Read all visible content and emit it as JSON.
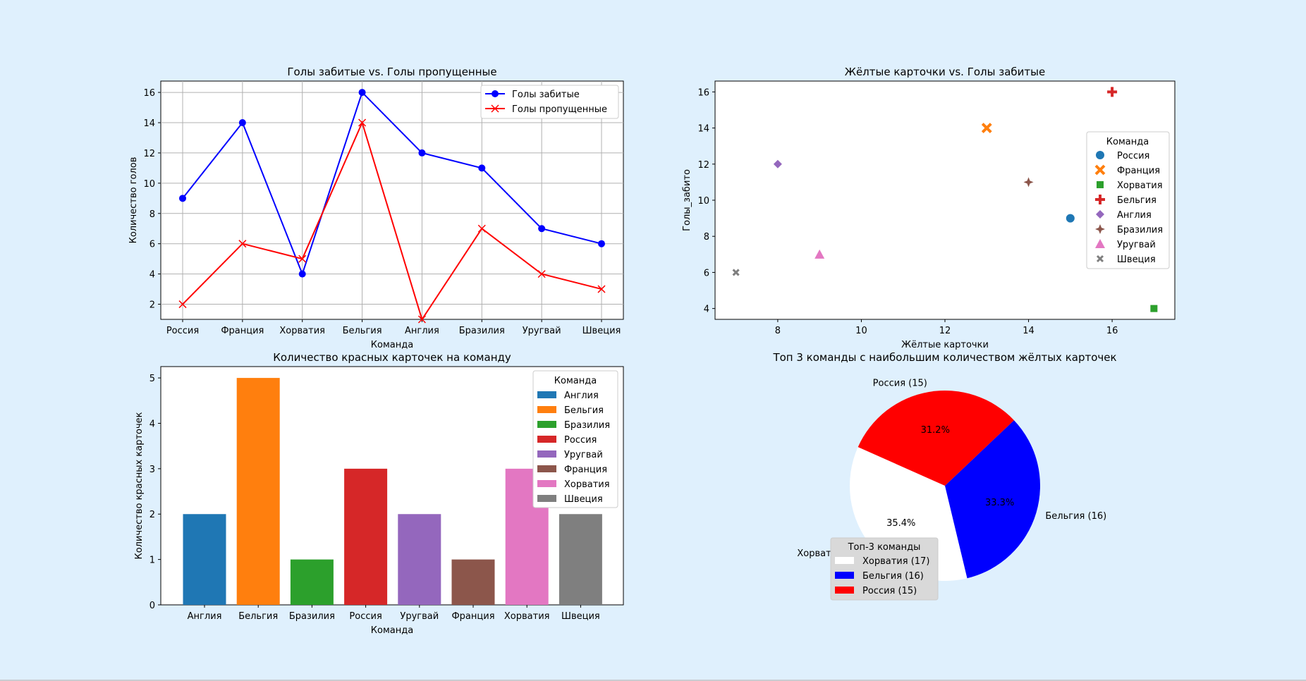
{
  "chart_data": [
    {
      "type": "line",
      "title": "Голы забитые vs. Голы пропущенные",
      "xlabel": "Команда",
      "ylabel": "Количество голов",
      "categories": [
        "Россия",
        "Франция",
        "Хорватия",
        "Бельгия",
        "Англия",
        "Бразилия",
        "Уругвай",
        "Швеция"
      ],
      "series": [
        {
          "name": "Голы забитые",
          "values": [
            9,
            14,
            4,
            16,
            12,
            11,
            7,
            6
          ],
          "color": "#0000ff",
          "marker": "o"
        },
        {
          "name": "Голы пропущенные",
          "values": [
            2,
            6,
            5,
            14,
            1,
            7,
            4,
            3
          ],
          "color": "#ff0000",
          "marker": "x"
        }
      ],
      "ylim": [
        1,
        16.75
      ],
      "yticks": [
        2,
        4,
        6,
        8,
        10,
        12,
        14,
        16
      ],
      "grid": true,
      "legend": "top-right"
    },
    {
      "type": "scatter",
      "title": "Жёлтые карточки vs. Голы забитые",
      "xlabel": "Жёлтые карточки",
      "ylabel": "Голы_забито",
      "legend_title": "Команда",
      "legend": "center-right",
      "xlim": [
        6.5,
        17.5
      ],
      "ylim": [
        3.4,
        16.6
      ],
      "xticks": [
        8,
        10,
        12,
        14,
        16
      ],
      "yticks": [
        4,
        6,
        8,
        10,
        12,
        14,
        16
      ],
      "grid": false,
      "points": [
        {
          "name": "Россия",
          "x": 15,
          "y": 9,
          "marker": "circle",
          "color": "#1f77b4"
        },
        {
          "name": "Франция",
          "x": 13,
          "y": 14,
          "marker": "x",
          "color": "#ff7f0e"
        },
        {
          "name": "Хорватия",
          "x": 17,
          "y": 4,
          "marker": "square",
          "color": "#2ca02c"
        },
        {
          "name": "Бельгия",
          "x": 16,
          "y": 16,
          "marker": "plus",
          "color": "#d62728"
        },
        {
          "name": "Англия",
          "x": 8,
          "y": 12,
          "marker": "diamond",
          "color": "#9467bd"
        },
        {
          "name": "Бразилия",
          "x": 14,
          "y": 11,
          "marker": "star4",
          "color": "#8c564b"
        },
        {
          "name": "Уругвай",
          "x": 9,
          "y": 7,
          "marker": "triangle",
          "color": "#e377c2"
        },
        {
          "name": "Швеция",
          "x": 7,
          "y": 6,
          "marker": "xsmall",
          "color": "#7f7f7f"
        }
      ]
    },
    {
      "type": "bar",
      "title": "Количество красных карточек на команду",
      "xlabel": "Команда",
      "ylabel": "Количество красных карточек",
      "legend_title": "Команда",
      "legend": "top-right",
      "categories": [
        "Англия",
        "Бельгия",
        "Бразилия",
        "Россия",
        "Уругвай",
        "Франция",
        "Хорватия",
        "Швеция"
      ],
      "values": [
        2,
        5,
        1,
        3,
        2,
        1,
        3,
        2
      ],
      "colors": [
        "#1f77b4",
        "#ff7f0e",
        "#2ca02c",
        "#d62728",
        "#9467bd",
        "#8c564b",
        "#e377c2",
        "#7f7f7f"
      ],
      "ylim": [
        0,
        5.25
      ],
      "yticks": [
        0,
        1,
        2,
        3,
        4,
        5
      ]
    },
    {
      "type": "pie",
      "title": "Топ 3 команды с наибольшим количеством жёлтых карточек",
      "legend_title": "Топ-3 команды",
      "legend": "lower-left",
      "slices": [
        {
          "label": "Хорватия (17)",
          "value": 17,
          "pct": "35.4%",
          "color": "#ffffff"
        },
        {
          "label": "Бельгия (16)",
          "value": 16,
          "pct": "33.3%",
          "color": "#0000ff"
        },
        {
          "label": "Россия (15)",
          "value": 15,
          "pct": "31.2%",
          "color": "#ff0000"
        }
      ]
    }
  ]
}
